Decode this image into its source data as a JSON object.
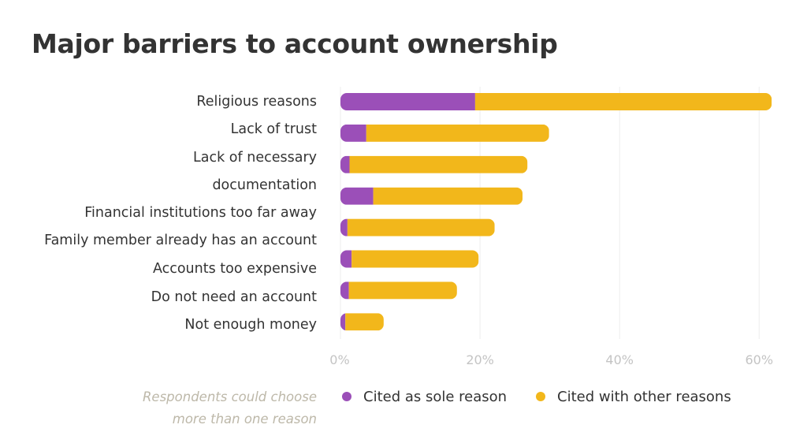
{
  "chart_data": {
    "type": "bar",
    "orientation": "horizontal",
    "stacked": true,
    "title": "Major barriers to account ownership",
    "categories": [
      "Religious reasons",
      "Lack of trust",
      "Lack of necessary documentation",
      "Financial institutions too far away",
      "Family member already has an account",
      "Accounts too expensive",
      "Do not need an account",
      "Not enough money"
    ],
    "category_label_lines": [
      [
        "Religious reasons"
      ],
      [
        "Lack of trust"
      ],
      [
        "Lack of necessary",
        "documentation"
      ],
      [
        "Financial institutions too far away"
      ],
      [
        "Family member already has an account"
      ],
      [
        "Accounts too expensive"
      ],
      [
        "Do not need an account"
      ],
      [
        "Not enough money"
      ]
    ],
    "series": [
      {
        "name": "Cited as sole reason",
        "color": "#9b4fb8",
        "values": [
          19.3,
          3.7,
          1.3,
          4.7,
          1.0,
          1.6,
          1.2,
          0.7
        ]
      },
      {
        "name": "Cited with other reasons",
        "color": "#f2b71b",
        "values": [
          42.5,
          26.2,
          25.5,
          21.4,
          21.1,
          18.2,
          15.5,
          5.5
        ]
      }
    ],
    "xlim": [
      0,
      62
    ],
    "xticks": [
      0,
      20,
      40,
      60
    ],
    "xtick_labels": [
      "0%",
      "20%",
      "40%",
      "60%"
    ],
    "grid": true,
    "legend_position": "bottom"
  },
  "legend": {
    "note_line1": "Respondents could choose",
    "note_line2": "more than one reason",
    "sole_label": "Cited as sole reason",
    "other_label": "Cited with other reasons"
  }
}
